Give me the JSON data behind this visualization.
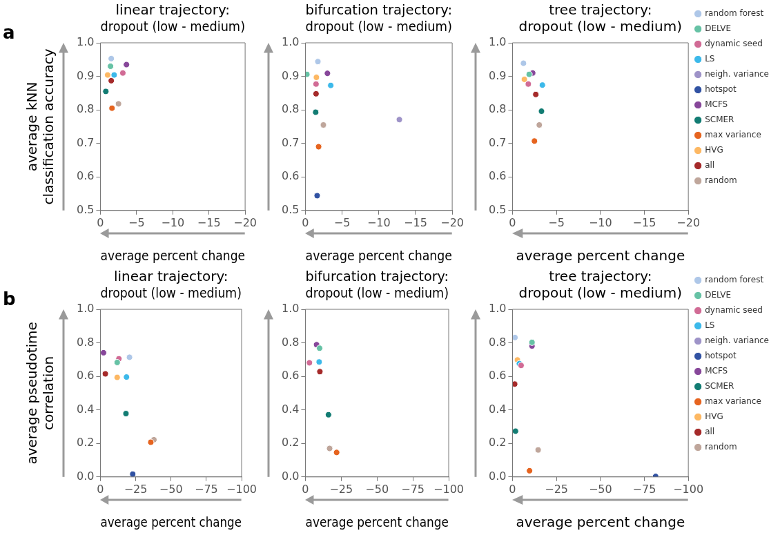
{
  "chart_data": [
    {
      "type": "scatter",
      "title": "linear trajectory:\ndropout (low - medium)",
      "xlabel": "average percent change",
      "ylabel": "average kNN\nclassification accuracy",
      "annotations": [
        "a"
      ],
      "xlim": [
        0,
        -20
      ],
      "xticks": [
        {
          "value": 0,
          "label": "0"
        },
        {
          "value": -5,
          "label": "−5"
        },
        {
          "value": -10,
          "label": "−10"
        },
        {
          "value": -15,
          "label": "−15"
        },
        {
          "value": -20,
          "label": "−20"
        }
      ],
      "ylim": [
        0.5,
        1.0
      ],
      "yticks": [
        {
          "value": 0.5,
          "label": "0.5"
        },
        {
          "value": 0.6,
          "label": "0.6"
        },
        {
          "value": 0.7,
          "label": "0.7"
        },
        {
          "value": 0.8,
          "label": "0.8"
        },
        {
          "value": 0.9,
          "label": "0.9"
        },
        {
          "value": 1.0,
          "label": "1.0"
        }
      ],
      "grid": false,
      "marker": "circle",
      "series": [
        {
          "color": "#aec7e8",
          "x": [
            -1.5
          ],
          "values": [
            0.953
          ]
        },
        {
          "color": "#66c2a5",
          "x": [
            -1.4
          ],
          "values": [
            0.93
          ]
        },
        {
          "color": "#d16b95",
          "x": [
            -3.1
          ],
          "values": [
            0.91
          ]
        },
        {
          "color": "#3cb9ea",
          "x": [
            -1.9
          ],
          "values": [
            0.904
          ]
        },
        {
          "color": "#87479a",
          "x": [
            -3.6
          ],
          "values": [
            0.935
          ]
        },
        {
          "color": "#127c73",
          "x": [
            -0.75
          ],
          "values": [
            0.855
          ]
        },
        {
          "color": "#e6641f",
          "x": [
            -1.6
          ],
          "values": [
            0.805
          ]
        },
        {
          "color": "#fdb863",
          "x": [
            -1.0
          ],
          "values": [
            0.904
          ]
        },
        {
          "color": "#a52a2a",
          "x": [
            -1.5
          ],
          "values": [
            0.887
          ]
        },
        {
          "color": "#bfa69b",
          "x": [
            -2.5
          ],
          "values": [
            0.818
          ]
        }
      ]
    },
    {
      "type": "scatter",
      "title": "bifurcation trajectory:\ndropout (low - medium)",
      "xlabel": "average percent change",
      "xlim": [
        0,
        -20
      ],
      "xticks": [
        {
          "value": 0,
          "label": "0"
        },
        {
          "value": -5,
          "label": "−5"
        },
        {
          "value": -10,
          "label": "−10"
        },
        {
          "value": -15,
          "label": "−15"
        },
        {
          "value": -20,
          "label": "−20"
        }
      ],
      "ylim": [
        0.5,
        1.0
      ],
      "yticks": [
        {
          "value": 0.5,
          "label": "0.5"
        },
        {
          "value": 0.6,
          "label": "0.6"
        },
        {
          "value": 0.7,
          "label": "0.7"
        },
        {
          "value": 0.8,
          "label": "0.8"
        },
        {
          "value": 0.9,
          "label": "0.9"
        },
        {
          "value": 1.0,
          "label": "1.0"
        }
      ],
      "grid": false,
      "marker": "circle",
      "series": [
        {
          "color": "#aec7e8",
          "x": [
            -1.7
          ],
          "values": [
            0.944
          ]
        },
        {
          "color": "#66c2a5",
          "x": [
            -0.2
          ],
          "values": [
            0.906
          ]
        },
        {
          "color": "#d16b95",
          "x": [
            -1.45
          ],
          "values": [
            0.877
          ]
        },
        {
          "color": "#3cb9ea",
          "x": [
            -3.45
          ],
          "values": [
            0.873
          ]
        },
        {
          "color": "#9e93c8",
          "x": [
            -12.8
          ],
          "values": [
            0.771
          ]
        },
        {
          "color": "#3152a3",
          "x": [
            -1.6
          ],
          "values": [
            0.544
          ]
        },
        {
          "color": "#87479a",
          "x": [
            -3.0
          ],
          "values": [
            0.909
          ]
        },
        {
          "color": "#127c73",
          "x": [
            -1.4
          ],
          "values": [
            0.793
          ]
        },
        {
          "color": "#e6641f",
          "x": [
            -1.8
          ],
          "values": [
            0.69
          ]
        },
        {
          "color": "#fdb863",
          "x": [
            -1.5
          ],
          "values": [
            0.897
          ]
        },
        {
          "color": "#a52a2a",
          "x": [
            -1.45
          ],
          "values": [
            0.848
          ]
        },
        {
          "color": "#bfa69b",
          "x": [
            -2.45
          ],
          "values": [
            0.755
          ]
        }
      ]
    },
    {
      "type": "scatter",
      "title": "tree trajectory:\ndropout (low - medium)",
      "xlabel": "average percent change",
      "xlim": [
        0,
        -20
      ],
      "xticks": [
        {
          "value": 0,
          "label": "0"
        },
        {
          "value": -5,
          "label": "−5"
        },
        {
          "value": -10,
          "label": "−10"
        },
        {
          "value": -15,
          "label": "−15"
        },
        {
          "value": -20,
          "label": "−20"
        }
      ],
      "ylim": [
        0.5,
        1.0
      ],
      "yticks": [
        {
          "value": 0.5,
          "label": "0.5"
        },
        {
          "value": 0.6,
          "label": "0.6"
        },
        {
          "value": 0.7,
          "label": "0.7"
        },
        {
          "value": 0.8,
          "label": "0.8"
        },
        {
          "value": 0.9,
          "label": "0.9"
        },
        {
          "value": 1.0,
          "label": "1.0"
        }
      ],
      "grid": false,
      "marker": "circle",
      "legend": "right",
      "series": [
        {
          "name": "random forest",
          "color": "#aec7e8",
          "x": [
            -1.25
          ],
          "values": [
            0.939
          ]
        },
        {
          "name": "DELVE",
          "color": "#66c2a5",
          "x": [
            -1.9
          ],
          "values": [
            0.906
          ]
        },
        {
          "name": "dynamic seed",
          "color": "#d16b95",
          "x": [
            -1.8
          ],
          "values": [
            0.877
          ]
        },
        {
          "name": "LS",
          "color": "#3cb9ea",
          "x": [
            -3.4
          ],
          "values": [
            0.874
          ]
        },
        {
          "name": "neigh. variance",
          "color": "#9e93c8"
        },
        {
          "name": "hotspot",
          "color": "#3152a3"
        },
        {
          "name": "MCFS",
          "color": "#87479a",
          "x": [
            -2.3
          ],
          "values": [
            0.91
          ]
        },
        {
          "name": "SCMER",
          "color": "#127c73",
          "x": [
            -3.3
          ],
          "values": [
            0.796
          ]
        },
        {
          "name": "max variance",
          "color": "#e6641f",
          "x": [
            -2.5
          ],
          "values": [
            0.707
          ]
        },
        {
          "name": "HVG",
          "color": "#fdb863",
          "x": [
            -1.35
          ],
          "values": [
            0.891
          ]
        },
        {
          "name": "all",
          "color": "#a52a2a",
          "x": [
            -2.65
          ],
          "values": [
            0.846
          ]
        },
        {
          "name": "random",
          "color": "#bfa69b",
          "x": [
            -3.05
          ],
          "values": [
            0.755
          ]
        }
      ]
    },
    {
      "type": "scatter",
      "title": "linear trajectory:\ndropout (low - medium)",
      "xlabel": "average percent change",
      "ylabel": "average pseudotime\ncorrelation",
      "annotations": [
        "b"
      ],
      "xlim": [
        0,
        -100
      ],
      "xticks": [
        {
          "value": 0,
          "label": "0"
        },
        {
          "value": -25,
          "label": "−25"
        },
        {
          "value": -50,
          "label": "−50"
        },
        {
          "value": -75,
          "label": "−75"
        },
        {
          "value": -100,
          "label": "−100"
        }
      ],
      "ylim": [
        0,
        1.0
      ],
      "yticks": [
        {
          "value": 0,
          "label": "0.0"
        },
        {
          "value": 0.2,
          "label": "0.2"
        },
        {
          "value": 0.4,
          "label": "0.4"
        },
        {
          "value": 0.6,
          "label": "0.6"
        },
        {
          "value": 0.8,
          "label": "0.8"
        },
        {
          "value": 1.0,
          "label": "1.0"
        }
      ],
      "grid": false,
      "marker": "circle",
      "series": [
        {
          "color": "#aec7e8",
          "x": [
            -20.6
          ],
          "values": [
            0.714
          ]
        },
        {
          "color": "#66c2a5",
          "x": [
            -11.9
          ],
          "values": [
            0.683
          ]
        },
        {
          "color": "#d16b95",
          "x": [
            -13.1
          ],
          "values": [
            0.705
          ]
        },
        {
          "color": "#3cb9ea",
          "x": [
            -18.5
          ],
          "values": [
            0.596
          ]
        },
        {
          "color": "#3152a3",
          "x": [
            -22.9
          ],
          "values": [
            0.017
          ]
        },
        {
          "color": "#87479a",
          "x": [
            -2.2
          ],
          "values": [
            0.741
          ]
        },
        {
          "color": "#127c73",
          "x": [
            -18.1
          ],
          "values": [
            0.378
          ]
        },
        {
          "color": "#e6641f",
          "x": [
            -35.7
          ],
          "values": [
            0.207
          ]
        },
        {
          "color": "#fdb863",
          "x": [
            -11.9
          ],
          "values": [
            0.594
          ]
        },
        {
          "color": "#a52a2a",
          "x": [
            -3.5
          ],
          "values": [
            0.615
          ]
        },
        {
          "color": "#bfa69b",
          "x": [
            -37.9
          ],
          "values": [
            0.222
          ]
        }
      ]
    },
    {
      "type": "scatter",
      "title": "bifurcation trajectory:\ndropout (low - medium)",
      "xlabel": "average percent change",
      "xlim": [
        0,
        -100
      ],
      "xticks": [
        {
          "value": 0,
          "label": "0"
        },
        {
          "value": -25,
          "label": "−25"
        },
        {
          "value": -50,
          "label": "−50"
        },
        {
          "value": -75,
          "label": "−75"
        },
        {
          "value": -100,
          "label": "−100"
        }
      ],
      "ylim": [
        0,
        1.0
      ],
      "yticks": [
        {
          "value": 0,
          "label": "0.0"
        },
        {
          "value": 0.2,
          "label": "0.2"
        },
        {
          "value": 0.4,
          "label": "0.4"
        },
        {
          "value": 0.6,
          "label": "0.6"
        },
        {
          "value": 0.8,
          "label": "0.8"
        },
        {
          "value": 1.0,
          "label": "1.0"
        }
      ],
      "grid": false,
      "marker": "circle",
      "series": [
        {
          "color": "#66c2a5",
          "x": [
            -9.9
          ],
          "values": [
            0.768
          ]
        },
        {
          "color": "#d16b95",
          "x": [
            -2.8
          ],
          "values": [
            0.681
          ]
        },
        {
          "color": "#3cb9ea",
          "x": [
            -9.6
          ],
          "values": [
            0.686
          ]
        },
        {
          "color": "#87479a",
          "x": [
            -7.8
          ],
          "values": [
            0.789
          ]
        },
        {
          "color": "#127c73",
          "x": [
            -16.1
          ],
          "values": [
            0.371
          ]
        },
        {
          "color": "#e6641f",
          "x": [
            -21.8
          ],
          "values": [
            0.146
          ]
        },
        {
          "color": "#a52a2a",
          "x": [
            -10.1
          ],
          "values": [
            0.628
          ]
        },
        {
          "color": "#bfa69b",
          "x": [
            -16.9
          ],
          "values": [
            0.17
          ]
        }
      ]
    },
    {
      "type": "scatter",
      "title": "tree trajectory:\ndropout (low - medium)",
      "xlabel": "average percent change",
      "xlim": [
        0,
        -100
      ],
      "xticks": [
        {
          "value": 0,
          "label": "0"
        },
        {
          "value": -25,
          "label": "−25"
        },
        {
          "value": -50,
          "label": "−50"
        },
        {
          "value": -75,
          "label": "−75"
        },
        {
          "value": -100,
          "label": "−100"
        }
      ],
      "ylim": [
        0,
        1.0
      ],
      "yticks": [
        {
          "value": 0,
          "label": "0.0"
        },
        {
          "value": 0.2,
          "label": "0.2"
        },
        {
          "value": 0.4,
          "label": "0.4"
        },
        {
          "value": 0.6,
          "label": "0.6"
        },
        {
          "value": 0.8,
          "label": "0.8"
        },
        {
          "value": 1.0,
          "label": "1.0"
        }
      ],
      "grid": false,
      "marker": "circle",
      "legend": "right",
      "series": [
        {
          "name": "random forest",
          "color": "#aec7e8",
          "x": [
            -1.4
          ],
          "values": [
            0.832
          ]
        },
        {
          "name": "DELVE",
          "color": "#66c2a5",
          "x": [
            -11.1
          ],
          "values": [
            0.803
          ]
        },
        {
          "name": "dynamic seed",
          "color": "#d16b95",
          "x": [
            -4.9
          ],
          "values": [
            0.665
          ]
        },
        {
          "name": "LS",
          "color": "#3cb9ea",
          "x": [
            -3.9
          ],
          "values": [
            0.676
          ]
        },
        {
          "name": "neigh. variance",
          "color": "#9e93c8"
        },
        {
          "name": "hotspot",
          "color": "#3152a3",
          "x": [
            -81.4
          ],
          "values": [
            0.003
          ]
        },
        {
          "name": "MCFS",
          "color": "#87479a",
          "x": [
            -11.1
          ],
          "values": [
            0.781
          ]
        },
        {
          "name": "SCMER",
          "color": "#127c73",
          "x": [
            -1.7
          ],
          "values": [
            0.273
          ]
        },
        {
          "name": "max variance",
          "color": "#e6641f",
          "x": [
            -9.7
          ],
          "values": [
            0.037
          ]
        },
        {
          "name": "HVG",
          "color": "#fdb863",
          "x": [
            -2.8
          ],
          "values": [
            0.698
          ]
        },
        {
          "name": "all",
          "color": "#a52a2a",
          "x": [
            -1.25
          ],
          "values": [
            0.554
          ]
        },
        {
          "name": "random",
          "color": "#bfa69b",
          "x": [
            -14.6
          ],
          "values": [
            0.161
          ]
        }
      ]
    }
  ]
}
